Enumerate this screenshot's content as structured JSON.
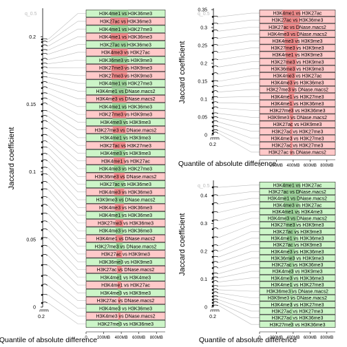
{
  "colors": {
    "green_bar": "#ccf5c8",
    "red_bar": "#ffc9c9",
    "green_fill": "#9fd59b",
    "red_fill": "#f08c8c",
    "line": "#000000",
    "connector": "#bbbbbb",
    "quantile_label": "#bbbbbb"
  },
  "chart_data": [
    {
      "type": "bar",
      "panel": "left",
      "ylabel": "Jaccard coefficient",
      "xlabel": "Quantile of absolute difference",
      "quantile_label": "q_0.5",
      "y_ticks": [
        "0",
        "0.05",
        "0.1",
        "0.15",
        "0.2"
      ],
      "ylim": [
        0,
        0.22
      ],
      "left_x_tick": "0.2",
      "bottom_ticks": [
        "0",
        "200MB",
        "400MB",
        "600MB",
        "800MB"
      ],
      "bottom_axis_label": "0 200MB 400MB 600MB 800MB",
      "xlim_mb": [
        0,
        900
      ],
      "bars": [
        {
          "label": "H3K4me1 vs H3K36me3",
          "color": "green",
          "value": 0.198
        },
        {
          "label": "H3K27ac vs H3K36me3",
          "color": "red",
          "value": 0.196
        },
        {
          "label": "H3K4me1 vs H3K27me3",
          "color": "green",
          "value": 0.193
        },
        {
          "label": "H3K4me1 vs H3K36me3",
          "color": "red",
          "value": 0.19
        },
        {
          "label": "H3K27ac vs H3K36me3",
          "color": "green",
          "value": 0.187
        },
        {
          "label": "H3K4me3 vs H3K27ac",
          "color": "red",
          "value": 0.183
        },
        {
          "label": "H3K36me3 vs H3K9me3",
          "color": "green",
          "value": 0.18
        },
        {
          "label": "H3K27me3 vs H3K9me3",
          "color": "red",
          "value": 0.177
        },
        {
          "label": "H3K27me3 vs H3K9me3",
          "color": "red",
          "value": 0.173
        },
        {
          "label": "H3K4me1 vs H3K27me3",
          "color": "green",
          "value": 0.17
        },
        {
          "label": "H3K4me1 vs DNase.macs2",
          "color": "green",
          "value": 0.166
        },
        {
          "label": "H3K4me3 vs DNase.macs2",
          "color": "red",
          "value": 0.162
        },
        {
          "label": "H3K4me1 vs H3K36me3",
          "color": "green",
          "value": 0.158
        },
        {
          "label": "H3K27me3 vs H3K9me3",
          "color": "red",
          "value": 0.154
        },
        {
          "label": "H3K4me3 vs H3K9me3",
          "color": "green",
          "value": 0.15
        },
        {
          "label": "H3K27me3 vs DNase.macs2",
          "color": "red",
          "value": 0.145
        },
        {
          "label": "H3K4me1 vs H3K9me3",
          "color": "green",
          "value": 0.141
        },
        {
          "label": "H3K27ac vs H3K27me3",
          "color": "red",
          "value": 0.137
        },
        {
          "label": "H3K4me3 vs H3K9me3",
          "color": "green",
          "value": 0.132
        },
        {
          "label": "H3K4me1 vs H3K27ac",
          "color": "red",
          "value": 0.127
        },
        {
          "label": "H3K4me3 vs H3K27me3",
          "color": "green",
          "value": 0.122
        },
        {
          "label": "H3K36me3 vs DNase.macs2",
          "color": "red",
          "value": 0.118
        },
        {
          "label": "H3K27ac vs H3K36me3",
          "color": "green",
          "value": 0.113
        },
        {
          "label": "H3K4me3 vs H3K36me3",
          "color": "red",
          "value": 0.108
        },
        {
          "label": "H3K9me3 vs DNase.macs2",
          "color": "green",
          "value": 0.103
        },
        {
          "label": "H3K4me3 vs H3K36me3",
          "color": "red",
          "value": 0.098
        },
        {
          "label": "H3K4me1 vs H3K36me3",
          "color": "green",
          "value": 0.092
        },
        {
          "label": "H3K27me3 vs H3K36me3",
          "color": "red",
          "value": 0.087
        },
        {
          "label": "H3K4me3 vs H3K36me3",
          "color": "green",
          "value": 0.081
        },
        {
          "label": "H3K4me1 vs DNase.macs2",
          "color": "red",
          "value": 0.075
        },
        {
          "label": "H3K27me3 vs DNase.macs2",
          "color": "green",
          "value": 0.069
        },
        {
          "label": "H3K27ac vs H3K9me3",
          "color": "red",
          "value": 0.063
        },
        {
          "label": "H3K36me3 vs H3K9me3",
          "color": "green",
          "value": 0.057
        },
        {
          "label": "H3K27ac vs DNase.macs2",
          "color": "red",
          "value": 0.051
        },
        {
          "label": "H3K4me1 vs H3K4me3",
          "color": "green",
          "value": 0.045
        },
        {
          "label": "H3K4me1 vs H3K27ac",
          "color": "red",
          "value": 0.038
        },
        {
          "label": "H3K4me3 vs H3K9me3",
          "color": "green",
          "value": 0.031
        },
        {
          "label": "H3K27ac vs DNase.macs2",
          "color": "red",
          "value": 0.023
        },
        {
          "label": "H3K4me3 vs H3K36me3",
          "color": "green",
          "value": 0.016
        },
        {
          "label": "H3K4me3 vs DNase.macs2",
          "color": "red",
          "value": 0.009
        },
        {
          "label": "H3K27me3 vs H3K36me3",
          "color": "green",
          "value": 0.003
        }
      ]
    },
    {
      "type": "bar",
      "panel": "top-right",
      "ylabel": "Jaccard coefficient",
      "xlabel": "Quantile of absolute difference",
      "quantile_label": "q_0.5",
      "y_ticks": [
        "0",
        "0.05",
        "0.1",
        "0.15",
        "0.2",
        "0.25",
        "0.3",
        "0.35"
      ],
      "ylim": [
        0,
        0.35
      ],
      "left_x_tick": "0.2",
      "bottom_ticks": [
        "0",
        "200MB",
        "400MB",
        "600MB",
        "800MB"
      ],
      "bottom_axis_label": "0 200MB 400MB 600MB 800MB",
      "xlim_mb": [
        0,
        900
      ],
      "bars": [
        {
          "label": "H3K4me1 vs H3K27ac",
          "color": "red",
          "value": 0.33
        },
        {
          "label": "H3K27ac vs H3K36me3",
          "color": "red",
          "value": 0.31
        },
        {
          "label": "H3K27ac vs DNase.macs2",
          "color": "red",
          "value": 0.29
        },
        {
          "label": "H3K4me3 vs DNase.macs2",
          "color": "red",
          "value": 0.27
        },
        {
          "label": "H3K4me3 vs H3K9me3",
          "color": "red",
          "value": 0.25
        },
        {
          "label": "H3K27me3 vs H3K9me3",
          "color": "red",
          "value": 0.23
        },
        {
          "label": "H3K4me1 vs H3K9me3",
          "color": "red",
          "value": 0.21
        },
        {
          "label": "H3K27me3 vs H3K9me3",
          "color": "red",
          "value": 0.19
        },
        {
          "label": "H3K36me3 vs H3K9me3",
          "color": "red",
          "value": 0.17
        },
        {
          "label": "H3K4me3 vs H3K27ac",
          "color": "red",
          "value": 0.15
        },
        {
          "label": "H3K4me3 vs H3K36me3",
          "color": "red",
          "value": 0.135
        },
        {
          "label": "H3K27me3 vs DNase.macs2",
          "color": "red",
          "value": 0.12
        },
        {
          "label": "H3K4me1 vs H3K27me3",
          "color": "red",
          "value": 0.105
        },
        {
          "label": "H3K4me1 vs H3K36me3",
          "color": "red",
          "value": 0.09
        },
        {
          "label": "H3K27me3 vs H3K36me3",
          "color": "red",
          "value": 0.075
        },
        {
          "label": "H3K9me3 vs DNase.macs2",
          "color": "red",
          "value": 0.06
        },
        {
          "label": "H3K27ac vs H3K9me3",
          "color": "red",
          "value": 0.048
        },
        {
          "label": "H3K27ac vs H3K27me3",
          "color": "red",
          "value": 0.036
        },
        {
          "label": "H3K4me3 vs H3K27me3",
          "color": "red",
          "value": 0.024
        },
        {
          "label": "H3K27ac vs H3K27me3",
          "color": "red",
          "value": 0.012
        },
        {
          "label": "H3K27ac vs DNase.macs2",
          "color": "red",
          "value": 0.004
        }
      ]
    },
    {
      "type": "bar",
      "panel": "bottom-right",
      "ylabel": "Jaccard coefficient",
      "xlabel": "Quantile of absolute difference",
      "quantile_label": "q_0.5",
      "y_ticks": [
        "0",
        "0.1",
        "0.2",
        "0.3",
        "0.4"
      ],
      "ylim": [
        0,
        0.45
      ],
      "left_x_tick": "0.2",
      "bottom_ticks": [
        "0",
        "200MB",
        "400MB",
        "600MB",
        "800MB"
      ],
      "bottom_axis_label": "0 200MB 400MB 600MB 800MB",
      "xlim_mb": [
        0,
        900
      ],
      "bars": [
        {
          "label": "H3K4me1 vs H3K27ac",
          "color": "green",
          "value": 0.43
        },
        {
          "label": "H3K27ac vs DNase.macs2",
          "color": "green",
          "value": 0.4
        },
        {
          "label": "H3K4me1 vs DNase.macs2",
          "color": "green",
          "value": 0.37
        },
        {
          "label": "H3K4me3 vs H3K27ac",
          "color": "green",
          "value": 0.34
        },
        {
          "label": "H3K4me1 vs H3K4me3",
          "color": "green",
          "value": 0.31
        },
        {
          "label": "H3K4me3 vs DNase.macs2",
          "color": "green",
          "value": 0.28
        },
        {
          "label": "H3K27me3 vs H3K9me3",
          "color": "green",
          "value": 0.25
        },
        {
          "label": "H3K27ac vs H3K9me3",
          "color": "green",
          "value": 0.22
        },
        {
          "label": "H3K4me1 vs H3K36me3",
          "color": "green",
          "value": 0.2
        },
        {
          "label": "H3K27ac vs H3K9me3",
          "color": "green",
          "value": 0.18
        },
        {
          "label": "H3K4me3 vs H3K36me3",
          "color": "green",
          "value": 0.16
        },
        {
          "label": "H3K36me3 vs H3K9me3",
          "color": "green",
          "value": 0.14
        },
        {
          "label": "H3K27ac vs H3K36me3",
          "color": "green",
          "value": 0.12
        },
        {
          "label": "H3K4me3 vs H3K9me3",
          "color": "green",
          "value": 0.105
        },
        {
          "label": "H3K4me3 vs H3K36me3",
          "color": "green",
          "value": 0.09
        },
        {
          "label": "H3K4me1 vs H3K27me3",
          "color": "green",
          "value": 0.075
        },
        {
          "label": "H3K36me3 vs DNase.macs2",
          "color": "green",
          "value": 0.062
        },
        {
          "label": "H3K9me3 vs DNase.macs2",
          "color": "green",
          "value": 0.05
        },
        {
          "label": "H3K4me3 vs H3K27me3",
          "color": "green",
          "value": 0.038
        },
        {
          "label": "H3K27ac vs H3K27me3",
          "color": "green",
          "value": 0.026
        },
        {
          "label": "H3K27ac vs H3K36me3",
          "color": "green",
          "value": 0.015
        },
        {
          "label": "H3K27me3 vs H3K36me3",
          "color": "green",
          "value": 0.005
        }
      ]
    }
  ]
}
